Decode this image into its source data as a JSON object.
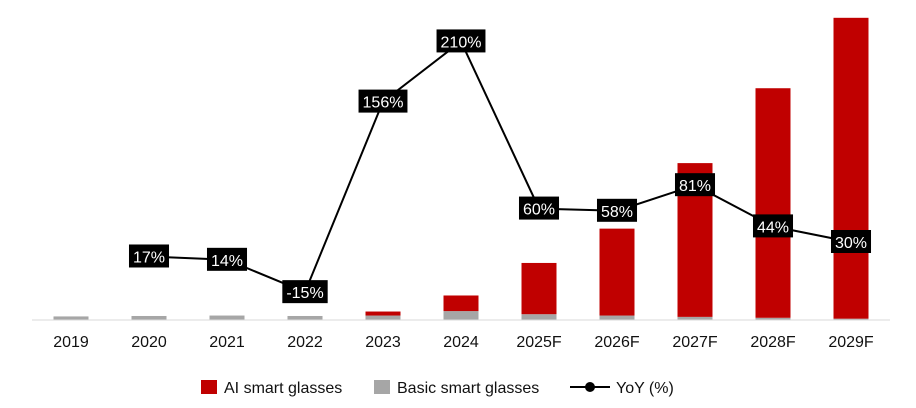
{
  "colors": {
    "ai": "#C00000",
    "basic": "#A6A6A6",
    "line": "#000000",
    "label_bg": "#000000",
    "label_text": "#FFFFFF"
  },
  "legend": {
    "ai": "AI smart glasses",
    "basic": "Basic smart glasses",
    "yoy": "YoY (%)"
  },
  "chart_data": {
    "type": "bar",
    "stacked": true,
    "categories": [
      "2019",
      "2020",
      "2021",
      "2022",
      "2023",
      "2024",
      "2025F",
      "2026F",
      "2027F",
      "2028F",
      "2029F"
    ],
    "series": [
      {
        "name": "AI smart glasses",
        "values": [
          0,
          0,
          0,
          0,
          0.9,
          3.5,
          11.5,
          19.5,
          34.5,
          51.5,
          67.5
        ]
      },
      {
        "name": "Basic smart glasses",
        "values": [
          0.8,
          0.9,
          1.0,
          0.9,
          1.0,
          2.0,
          1.3,
          1.0,
          0.7,
          0.5,
          0.3
        ]
      }
    ],
    "line_series": {
      "name": "YoY (%)",
      "categories": [
        "2020",
        "2021",
        "2022",
        "2023",
        "2024",
        "2025F",
        "2026F",
        "2027F",
        "2028F",
        "2029F"
      ],
      "values": [
        17,
        14,
        -15,
        156,
        210,
        60,
        58,
        81,
        44,
        30
      ],
      "labels": [
        "17%",
        "14%",
        "-15%",
        "156%",
        "210%",
        "60%",
        "58%",
        "81%",
        "44%",
        "30%"
      ]
    },
    "ylim": [
      0,
      70
    ],
    "y2lim": [
      -40,
      240
    ],
    "grid": false,
    "legend_position": "bottom"
  }
}
